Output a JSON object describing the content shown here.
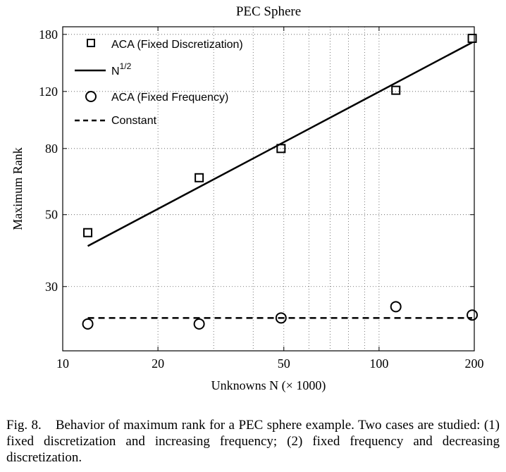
{
  "chart_data": {
    "type": "line",
    "title": "PEC Sphere",
    "xlabel": "Unknowns N (× 1000)",
    "ylabel": "Maximum Rank",
    "xscale": "log",
    "yscale": "log",
    "xlim": [
      10,
      200
    ],
    "ylim": [
      19,
      190
    ],
    "xticks": [
      10,
      20,
      50,
      100,
      200
    ],
    "xtick_labels": [
      "10",
      "20",
      "50",
      "100",
      "200"
    ],
    "yticks": [
      30,
      50,
      80,
      120,
      180
    ],
    "ytick_labels": [
      "30",
      "50",
      "80",
      "120",
      "180"
    ],
    "grid": true,
    "legend_position": "top-left",
    "series": [
      {
        "name": "ACA (Fixed Discretization)",
        "style": "square-markers",
        "x": [
          12,
          27,
          49,
          113,
          197
        ],
        "y": [
          44,
          65,
          80,
          121,
          175
        ]
      },
      {
        "name": "N^{1/2}",
        "style": "solid-line",
        "x": [
          12,
          197
        ],
        "y": [
          40,
          170
        ]
      },
      {
        "name": "ACA (Fixed Frequency)",
        "style": "circle-markers",
        "x": [
          12,
          27,
          49,
          113,
          197
        ],
        "y": [
          23,
          23,
          24,
          26,
          24.5
        ]
      },
      {
        "name": "Constant",
        "style": "dashed-line",
        "x": [
          12,
          197
        ],
        "y": [
          24,
          24
        ]
      }
    ]
  },
  "legend": {
    "items": [
      {
        "key": "aca_fixed_discretization",
        "text": "ACA (Fixed Discretization)"
      },
      {
        "key": "n_half",
        "text": "N",
        "sup": "1/2"
      },
      {
        "key": "aca_fixed_frequency",
        "text": "ACA (Fixed Frequency)"
      },
      {
        "key": "constant",
        "text": "Constant"
      }
    ]
  },
  "caption": {
    "label": "Fig. 8.",
    "text": "Behavior of maximum rank for a PEC sphere example. Two cases are studied: (1) fixed discretization and increasing frequency; (2) fixed frequency and decreasing discretization."
  }
}
